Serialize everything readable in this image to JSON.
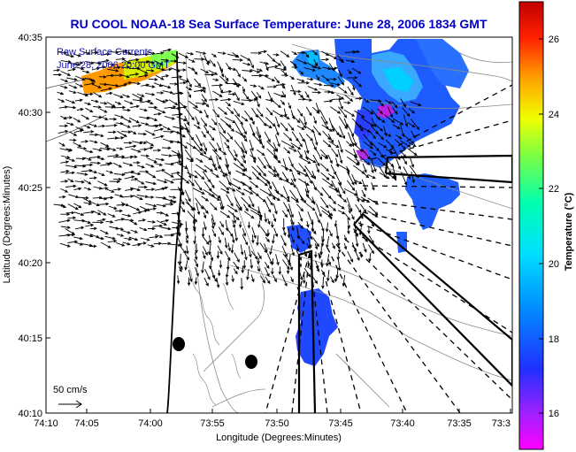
{
  "title": "RU COOL  NOAA-18  Sea Surface Temperature:  June 28, 2006 1834 GMT",
  "legend": {
    "line1": "Raw Surface Currents",
    "line2": "June 28, 2006 20:00 GMT"
  },
  "scale": {
    "label": "50 cm/s"
  },
  "axes": {
    "xlabel": "Longitude (Degrees:Minutes)",
    "ylabel": "Latitude (Degrees:Minutes)",
    "xticks": [
      "74:10",
      "74:05",
      "74:00",
      "73:55",
      "73:50",
      "73:45",
      "73:40",
      "73:35",
      "73:3"
    ],
    "yticks": [
      "40:35",
      "40:30",
      "40:25",
      "40:20",
      "40:15",
      "40:10"
    ]
  },
  "colorbar": {
    "label": "Temperature (°C)",
    "ticks": [
      "26",
      "24",
      "22",
      "20",
      "18",
      "16"
    ],
    "colors": [
      "#ff00ff",
      "#3030ff",
      "#00c0ff",
      "#00ffc0",
      "#60ff40",
      "#f0ff00",
      "#ff9000",
      "#ff0000",
      "#c00000"
    ]
  }
}
